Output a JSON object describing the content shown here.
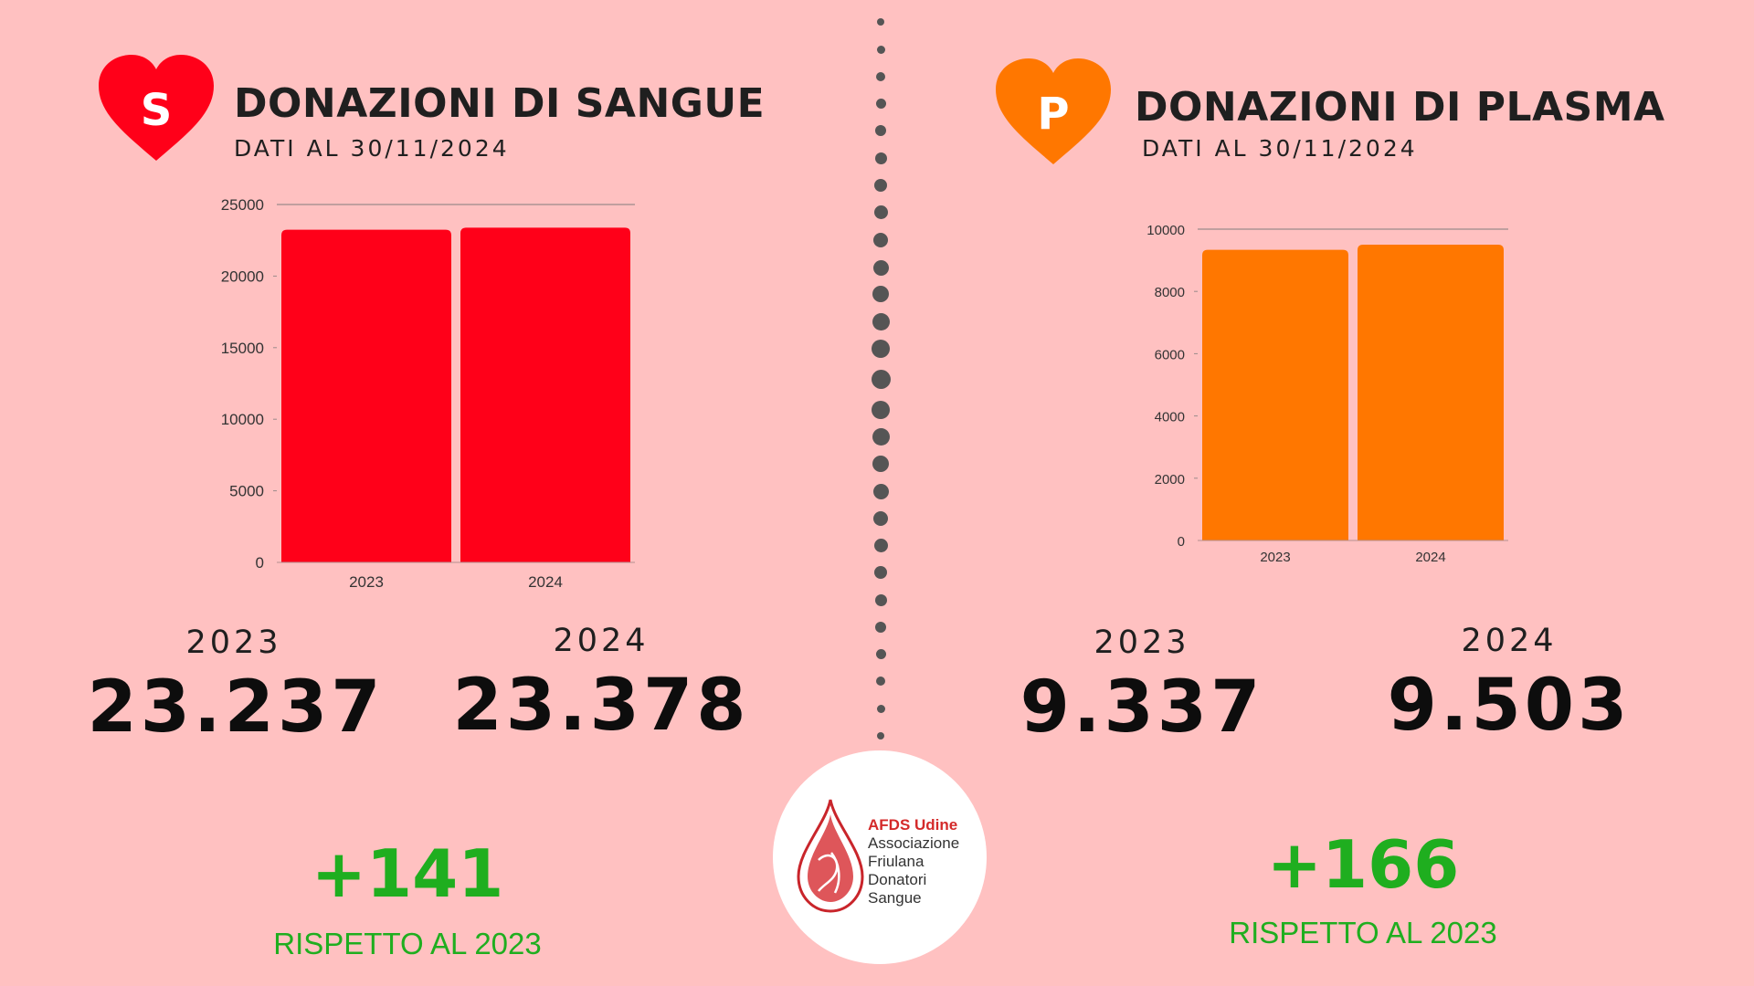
{
  "left": {
    "badge_letter": "S",
    "title": "DONAZIONI DI SANGUE",
    "subtitle": "DATI AL 30/11/2024",
    "year_a": "2023",
    "year_b": "2024",
    "value_a": "23.237",
    "value_b": "23.378",
    "delta": "+141",
    "delta_caption": "RISPETTO AL 2023",
    "color": "#ff0019"
  },
  "right": {
    "badge_letter": "P",
    "title": "DONAZIONI DI PLASMA",
    "subtitle": "DATI AL 30/11/2024",
    "year_a": "2023",
    "year_b": "2024",
    "value_a": "9.337",
    "value_b": "9.503",
    "delta": "+166",
    "delta_caption": "RISPETTO AL 2023",
    "color": "#ff7700"
  },
  "logo": {
    "brand": "AFDS Udine",
    "line1": "Associazione",
    "line2": "Friulana",
    "line3": "Donatori",
    "line4": "Sangue"
  },
  "chart_data": [
    {
      "type": "bar",
      "categories": [
        "2023",
        "2024"
      ],
      "values": [
        23237,
        23378
      ],
      "ylim": [
        0,
        25000
      ],
      "yticks": [
        0,
        5000,
        10000,
        15000,
        20000,
        25000
      ],
      "color": "#ff0019",
      "grid": true
    },
    {
      "type": "bar",
      "categories": [
        "2023",
        "2024"
      ],
      "values": [
        9337,
        9503
      ],
      "ylim": [
        0,
        10000
      ],
      "yticks": [
        0,
        2000,
        4000,
        6000,
        8000,
        10000
      ],
      "color": "#ff7700",
      "grid": true
    }
  ]
}
